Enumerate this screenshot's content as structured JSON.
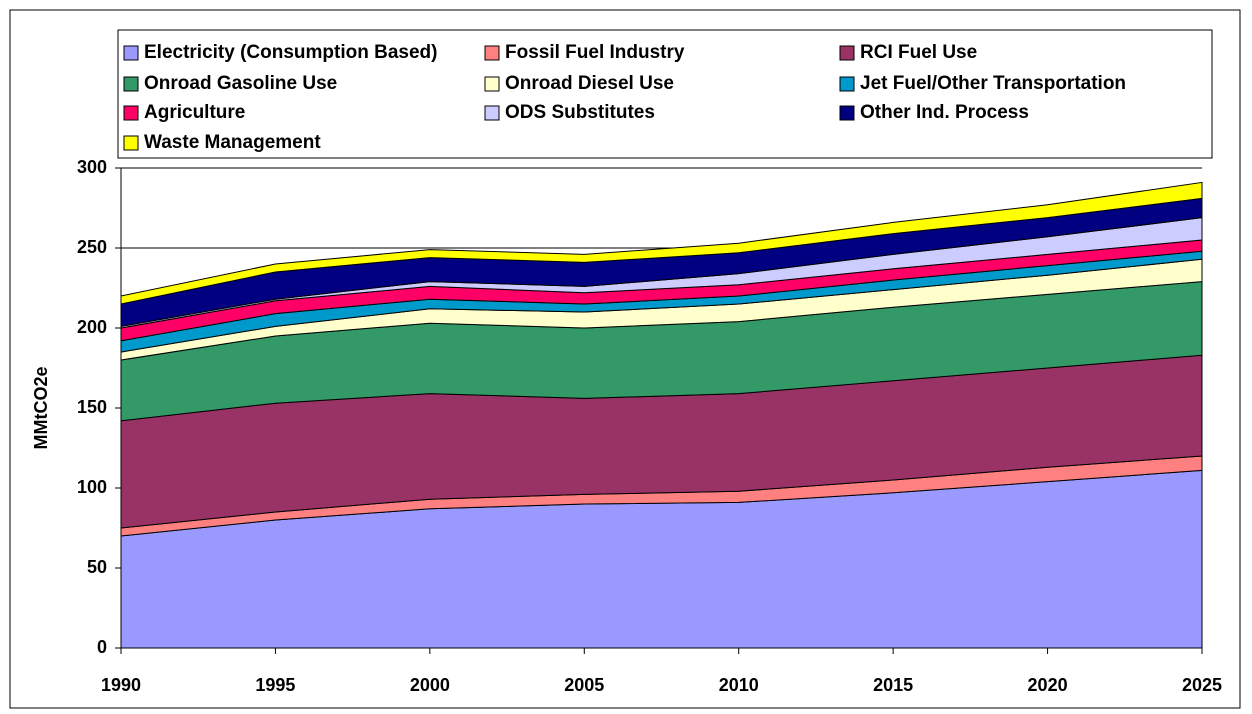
{
  "chart_data": {
    "type": "stacked-area",
    "x": [
      1990,
      1995,
      2000,
      2005,
      2010,
      2015,
      2020,
      2025
    ],
    "xlim": [
      1990,
      2025
    ],
    "xticks": [
      1990,
      1995,
      2000,
      2005,
      2010,
      2015,
      2020,
      2025
    ],
    "ylim": [
      0,
      300
    ],
    "yticks": [
      0,
      50,
      100,
      150,
      200,
      250,
      300
    ],
    "y_label": "MMtCO2e",
    "grid": true,
    "legend": "top",
    "series": [
      {
        "name": "Electricity (Consumption Based)",
        "color": "#9999ff",
        "values": [
          70,
          80,
          87,
          90,
          91,
          97,
          104,
          111
        ]
      },
      {
        "name": "Fossil Fuel Industry",
        "color": "#ff8080",
        "values": [
          5,
          5,
          6,
          6,
          7,
          8,
          9,
          9
        ]
      },
      {
        "name": "RCI Fuel Use",
        "color": "#993366",
        "values": [
          67,
          68,
          66,
          60,
          61,
          62,
          62,
          63
        ]
      },
      {
        "name": "Onroad Gasoline Use",
        "color": "#339966",
        "values": [
          38,
          42,
          44,
          44,
          45,
          46,
          46,
          46
        ]
      },
      {
        "name": "Onroad Diesel Use",
        "color": "#ffffcc",
        "values": [
          5,
          6,
          9,
          10,
          11,
          11,
          12,
          14
        ]
      },
      {
        "name": "Jet Fuel/Other Transportation",
        "color": "#0099cc",
        "values": [
          7,
          8,
          6,
          5,
          5,
          6,
          6,
          5
        ]
      },
      {
        "name": "Agriculture",
        "color": "#ff0066",
        "values": [
          8,
          8,
          8,
          7,
          7,
          7,
          7,
          7
        ]
      },
      {
        "name": "ODS Substitutes",
        "color": "#ccccff",
        "values": [
          1,
          1,
          3,
          4,
          7,
          9,
          11,
          14
        ]
      },
      {
        "name": "Other Ind. Process",
        "color": "#000080",
        "values": [
          14,
          17,
          15,
          15,
          13,
          13,
          12,
          12
        ]
      },
      {
        "name": "Waste Management",
        "color": "#ffff00",
        "values": [
          5,
          5,
          5,
          5,
          6,
          7,
          8,
          10
        ]
      }
    ]
  }
}
